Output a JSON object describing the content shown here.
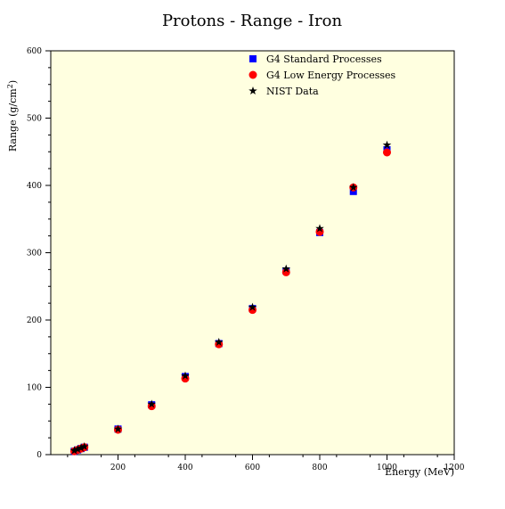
{
  "chart_data": {
    "type": "scatter",
    "title": "Protons - Range - Iron",
    "xlabel": "Energy (MeV)",
    "ylabel": "Range (g/cm",
    "ylabel_sup": "2",
    "ylabel_end": ")",
    "xlim": [
      0,
      1200
    ],
    "ylim": [
      0,
      600
    ],
    "xticks": [
      200,
      400,
      600,
      800,
      1000,
      1200
    ],
    "yticks": [
      0,
      100,
      200,
      300,
      400,
      500,
      600
    ],
    "background": "#ffffe0",
    "legend_position": "top-right",
    "series": [
      {
        "name": "G4 Standard Processes",
        "marker": "square",
        "color": "#0000ff",
        "x": [
          70,
          80,
          90,
          100,
          200,
          300,
          400,
          500,
          600,
          700,
          800,
          900,
          1000
        ],
        "y": [
          5,
          7,
          9,
          11,
          38,
          74,
          116,
          165,
          217,
          273,
          330,
          391,
          453
        ]
      },
      {
        "name": "G4 Low Energy Processes",
        "marker": "circle",
        "color": "#ff0000",
        "x": [
          70,
          80,
          90,
          100,
          200,
          300,
          400,
          500,
          600,
          700,
          800,
          900,
          1000
        ],
        "y": [
          5,
          7,
          9,
          11,
          37,
          72,
          113,
          164,
          215,
          271,
          331,
          397,
          449
        ]
      },
      {
        "name": "NIST Data",
        "marker": "star",
        "color": "#000000",
        "x": [
          70,
          80,
          90,
          100,
          200,
          300,
          400,
          500,
          600,
          700,
          800,
          900,
          1000
        ],
        "y": [
          6,
          8,
          10,
          12,
          38,
          75,
          117,
          167,
          219,
          276,
          336,
          397,
          460
        ]
      }
    ]
  }
}
